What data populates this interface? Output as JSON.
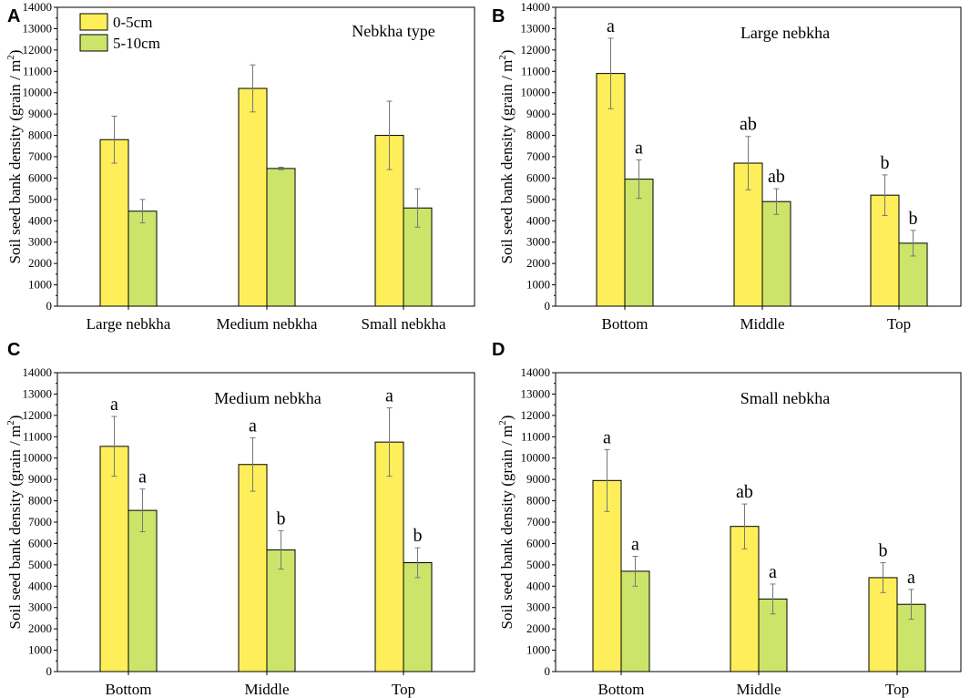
{
  "colors": {
    "series_0_5": "#fdee5a",
    "series_5_10": "#cce46a",
    "stroke": "#000000",
    "error_bar": "#777777"
  },
  "chart_data": [
    {
      "panel": "A",
      "type": "bar",
      "title": "Nebkha type",
      "ylabel": "Soil seed bank density (grain / m",
      "ylabel_sup": "2",
      "ylabel_close": ")",
      "ylim": [
        0,
        14000
      ],
      "yticks": [
        0,
        1000,
        2000,
        3000,
        4000,
        5000,
        6000,
        7000,
        8000,
        9000,
        10000,
        11000,
        12000,
        13000,
        14000
      ],
      "categories": [
        "Large nebkha",
        "Medium nebkha",
        "Small nebkha"
      ],
      "legend": [
        "0-5cm",
        "5-10cm"
      ],
      "series": [
        {
          "name": "0-5cm",
          "values": [
            7800,
            10200,
            8000
          ],
          "errors": [
            1100,
            1100,
            1600
          ],
          "sig": [
            "",
            "",
            ""
          ]
        },
        {
          "name": "5-10cm",
          "values": [
            4450,
            6450,
            4600
          ],
          "errors": [
            550,
            60,
            900
          ],
          "sig": [
            "",
            "",
            ""
          ]
        }
      ]
    },
    {
      "panel": "B",
      "type": "bar",
      "title": "Large nebkha",
      "ylabel": "Soil seed bank density (grain / m",
      "ylabel_sup": "2",
      "ylabel_close": ")",
      "ylim": [
        0,
        14000
      ],
      "yticks": [
        0,
        1000,
        2000,
        3000,
        4000,
        5000,
        6000,
        7000,
        8000,
        9000,
        10000,
        11000,
        12000,
        13000,
        14000
      ],
      "categories": [
        "Bottom",
        "Middle",
        "Top"
      ],
      "legend": [],
      "series": [
        {
          "name": "0-5cm",
          "values": [
            10900,
            6700,
            5200
          ],
          "errors": [
            1650,
            1250,
            950
          ],
          "sig": [
            "a",
            "ab",
            "b"
          ]
        },
        {
          "name": "5-10cm",
          "values": [
            5950,
            4900,
            2950
          ],
          "errors": [
            900,
            600,
            600
          ],
          "sig": [
            "a",
            "ab",
            "b"
          ]
        }
      ]
    },
    {
      "panel": "C",
      "type": "bar",
      "title": "Medium nebkha",
      "ylabel": "Soil seed bank density (grain / m",
      "ylabel_sup": "2",
      "ylabel_close": ")",
      "ylim": [
        0,
        14000
      ],
      "yticks": [
        0,
        1000,
        2000,
        3000,
        4000,
        5000,
        6000,
        7000,
        8000,
        9000,
        10000,
        11000,
        12000,
        13000,
        14000
      ],
      "categories": [
        "Bottom",
        "Middle",
        "Top"
      ],
      "legend": [],
      "series": [
        {
          "name": "0-5cm",
          "values": [
            10550,
            9700,
            10750
          ],
          "errors": [
            1400,
            1250,
            1600
          ],
          "sig": [
            "a",
            "a",
            "a"
          ]
        },
        {
          "name": "5-10cm",
          "values": [
            7550,
            5700,
            5100
          ],
          "errors": [
            1000,
            900,
            700
          ],
          "sig": [
            "a",
            "b",
            "b"
          ]
        }
      ]
    },
    {
      "panel": "D",
      "type": "bar",
      "title": "Small nebkha",
      "ylabel": "Soil seed bank density (grain / m",
      "ylabel_sup": "2",
      "ylabel_close": ")",
      "ylim": [
        0,
        14000
      ],
      "yticks": [
        0,
        1000,
        2000,
        3000,
        4000,
        5000,
        6000,
        7000,
        8000,
        9000,
        10000,
        11000,
        12000,
        13000,
        14000
      ],
      "categories": [
        "Bottom",
        "Middle",
        "Top"
      ],
      "legend": [],
      "series": [
        {
          "name": "0-5cm",
          "values": [
            8950,
            6800,
            4400
          ],
          "errors": [
            1450,
            1050,
            700
          ],
          "sig": [
            "a",
            "ab",
            "b"
          ]
        },
        {
          "name": "5-10cm",
          "values": [
            4700,
            3400,
            3150
          ],
          "errors": [
            700,
            700,
            700
          ],
          "sig": [
            "a",
            "a",
            "a"
          ]
        }
      ]
    }
  ]
}
